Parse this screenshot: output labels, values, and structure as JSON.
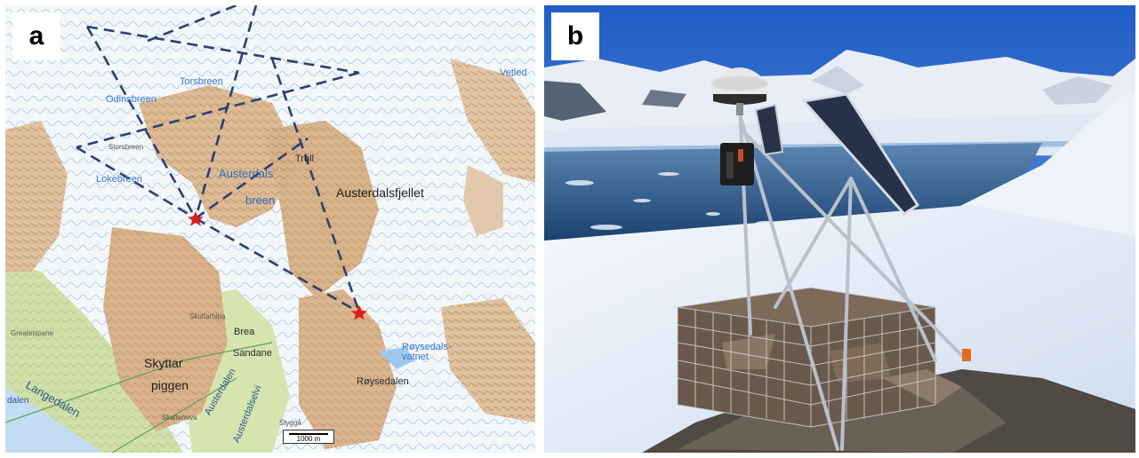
{
  "panels": {
    "a": {
      "label": "a",
      "map_labels": {
        "vetled": "Vetled",
        "odinsbreen": "Odinsbreen",
        "torsbreen": "Torsbreen",
        "austerdals": "Austerdals",
        "breen": "breen",
        "lokebreen": "Lokebreen",
        "austerdalsfjellet": "Austerdalsfjellet",
        "trollr": "Troll",
        "langedalen": "Langedalen",
        "skyttar": "Skyttar",
        "piggen": "piggen",
        "austerdalen": "Austerdalen",
        "austerdalselvi": "Austerdalselvi",
        "roysedals_vatnet": "Røysedals-\nvatnet",
        "roysedalen": "Røysedalen",
        "brea": "Brea",
        "sandane": "Sandane",
        "skottarhipa": "Skottarhipa",
        "stygge": "Styggå",
        "skaltanova": "Skaltanova",
        "storsbreen": "Storsbreen",
        "greatelspane": "Greatelspane",
        "lodalen": "dalen"
      },
      "scale_bar": "1000 m",
      "markers": [
        "red-star",
        "red-star"
      ]
    },
    "b": {
      "label": "b"
    }
  },
  "colors": {
    "contour_ice": "#7fb2e6",
    "contour_rock": "#c69a6c",
    "rock_fill": "#d9b792",
    "vegetation": "#c9dca0",
    "route_dash": "#2c3f75",
    "star": "#e11b1b",
    "sky": "#2f6fd0",
    "water": "#1f4f86",
    "snow": "#f2f5fb"
  }
}
